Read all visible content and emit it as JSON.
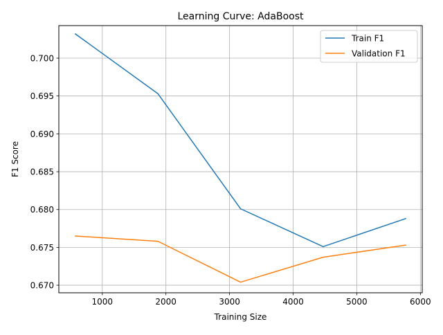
{
  "chart_data": {
    "type": "line",
    "title": "Learning Curve: AdaBoost",
    "xlabel": "Training Size",
    "ylabel": "F1 Score",
    "x": [
      577,
      1875,
      3173,
      4471,
      5769
    ],
    "xlim": [
      317,
      6029
    ],
    "ylim": [
      0.669,
      0.7043
    ],
    "xticks": [
      1000,
      2000,
      3000,
      4000,
      5000,
      6000
    ],
    "yticks": [
      0.67,
      0.675,
      0.68,
      0.685,
      0.69,
      0.695,
      0.7
    ],
    "ytick_labels": [
      "0.670",
      "0.675",
      "0.680",
      "0.685",
      "0.690",
      "0.695",
      "0.700"
    ],
    "grid": true,
    "legend_position": "upper right",
    "series": [
      {
        "name": "Train F1",
        "color": "#1f77b4",
        "values": [
          0.7032,
          0.6953,
          0.6801,
          0.6751,
          0.6788
        ]
      },
      {
        "name": "Validation F1",
        "color": "#ff7f0e",
        "values": [
          0.6765,
          0.6758,
          0.6704,
          0.6737,
          0.6753
        ]
      }
    ]
  }
}
